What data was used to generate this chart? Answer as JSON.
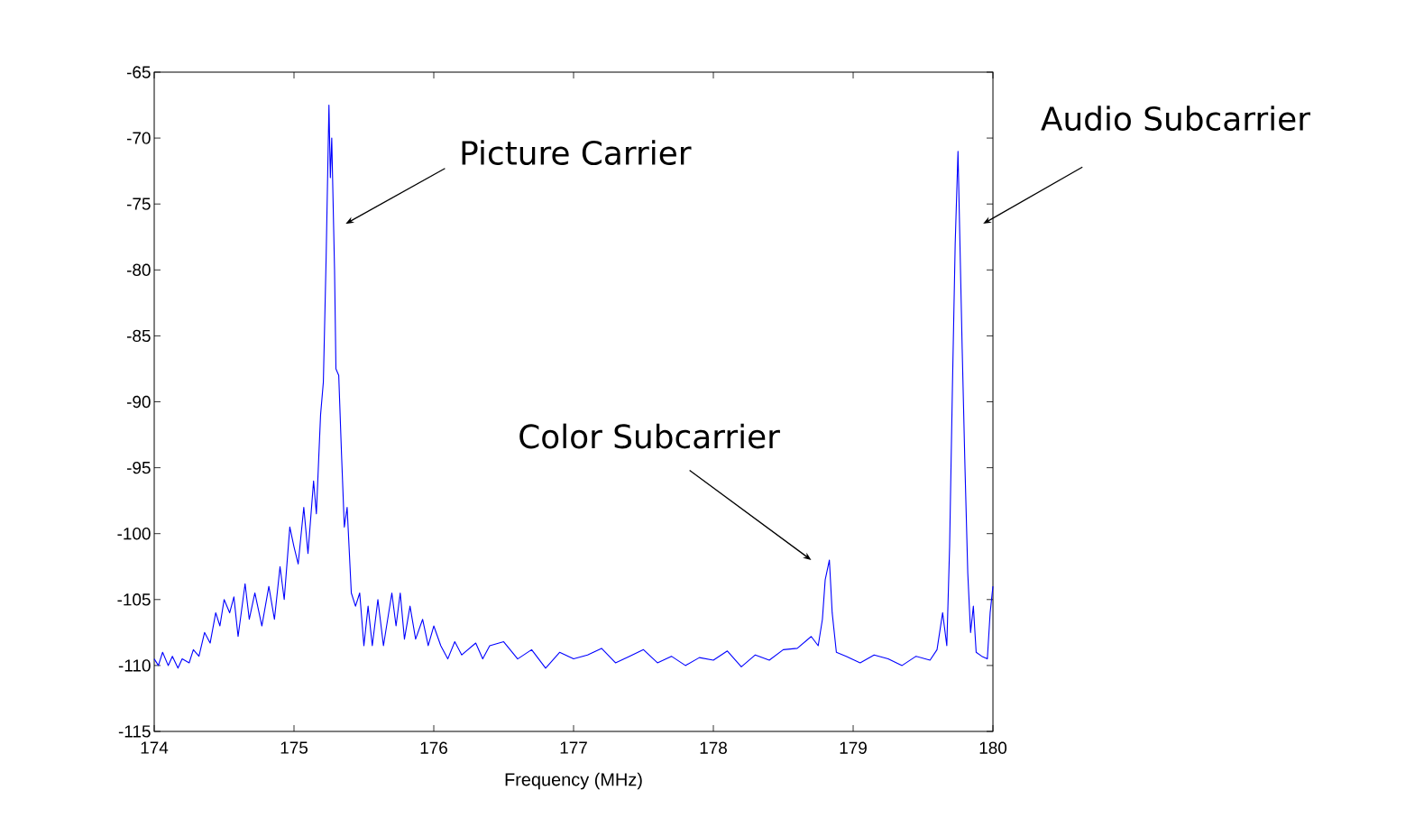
{
  "chart_data": {
    "type": "line",
    "xlabel": "Frequency (MHz)",
    "x": [
      174.0,
      174.03,
      174.06,
      174.1,
      174.13,
      174.17,
      174.2,
      174.25,
      174.28,
      174.32,
      174.36,
      174.4,
      174.44,
      174.47,
      174.5,
      174.54,
      174.57,
      174.6,
      174.65,
      174.68,
      174.72,
      174.77,
      174.82,
      174.86,
      174.9,
      174.93,
      174.97,
      175.0,
      175.03,
      175.07,
      175.1,
      175.14,
      175.16,
      175.19,
      175.21,
      175.23,
      175.25,
      175.26,
      175.27,
      175.29,
      175.3,
      175.32,
      175.34,
      175.36,
      175.38,
      175.41,
      175.44,
      175.47,
      175.5,
      175.53,
      175.56,
      175.6,
      175.64,
      175.7,
      175.73,
      175.76,
      175.79,
      175.83,
      175.87,
      175.92,
      175.96,
      176.0,
      176.05,
      176.1,
      176.15,
      176.2,
      176.3,
      176.35,
      176.4,
      176.5,
      176.6,
      176.7,
      176.8,
      176.9,
      177.0,
      177.1,
      177.2,
      177.3,
      177.4,
      177.5,
      177.6,
      177.7,
      177.8,
      177.9,
      178.0,
      178.1,
      178.2,
      178.3,
      178.4,
      178.5,
      178.6,
      178.7,
      178.75,
      178.78,
      178.8,
      178.83,
      178.85,
      178.88,
      178.95,
      179.05,
      179.15,
      179.25,
      179.35,
      179.45,
      179.55,
      179.6,
      179.64,
      179.67,
      179.69,
      179.71,
      179.73,
      179.75,
      179.76,
      179.78,
      179.8,
      179.82,
      179.84,
      179.86,
      179.88,
      179.92,
      179.96,
      179.98,
      180.0
    ],
    "series": [
      {
        "color": "#0000ff",
        "values": [
          -109.5,
          -110,
          -109,
          -110,
          -109.3,
          -110.2,
          -109.5,
          -109.8,
          -108.8,
          -109.3,
          -107.5,
          -108.3,
          -106,
          -107,
          -105,
          -106,
          -104.8,
          -107.8,
          -103.8,
          -106.5,
          -104.5,
          -107,
          -104,
          -106.5,
          -102.5,
          -105,
          -99.5,
          -101,
          -102.3,
          -98,
          -101.5,
          -96,
          -98.5,
          -91,
          -88.5,
          -79,
          -67.5,
          -73,
          -70,
          -80,
          -87.5,
          -88,
          -94,
          -99.5,
          -98,
          -104.5,
          -105.5,
          -104.5,
          -108.5,
          -105.5,
          -108.5,
          -105,
          -108.5,
          -104.5,
          -107,
          -104.5,
          -108,
          -105.5,
          -108,
          -106.5,
          -108.5,
          -107,
          -108.5,
          -109.5,
          -108.2,
          -109.2,
          -108.3,
          -109.5,
          -108.5,
          -108.2,
          -109.5,
          -108.8,
          -110.2,
          -109,
          -109.5,
          -109.2,
          -108.7,
          -109.8,
          -109.3,
          -108.8,
          -109.8,
          -109.3,
          -110,
          -109.4,
          -109.6,
          -108.9,
          -110.1,
          -109.2,
          -109.6,
          -108.8,
          -108.7,
          -107.8,
          -108.5,
          -106.5,
          -103.5,
          -102,
          -106,
          -109,
          -109.3,
          -109.8,
          -109.2,
          -109.5,
          -110,
          -109.3,
          -109.6,
          -108.8,
          -106,
          -108.5,
          -101,
          -89,
          -78,
          -71,
          -76,
          -86,
          -95,
          -103,
          -107.5,
          -105.5,
          -109,
          -109.3,
          -109.5,
          -106,
          -104
        ]
      }
    ],
    "xlim": [
      174,
      180
    ],
    "ylim": [
      -115,
      -65
    ],
    "xticks": [
      174,
      175,
      176,
      177,
      178,
      179,
      180
    ],
    "yticks": [
      -115,
      -110,
      -105,
      -100,
      -95,
      -90,
      -85,
      -80,
      -75,
      -70,
      -65
    ],
    "grid": false,
    "marker": "none",
    "line_style": "solid",
    "annotations": [
      "Picture Carrier",
      "Color Subcarrier",
      "Audio Subcarrier"
    ]
  }
}
